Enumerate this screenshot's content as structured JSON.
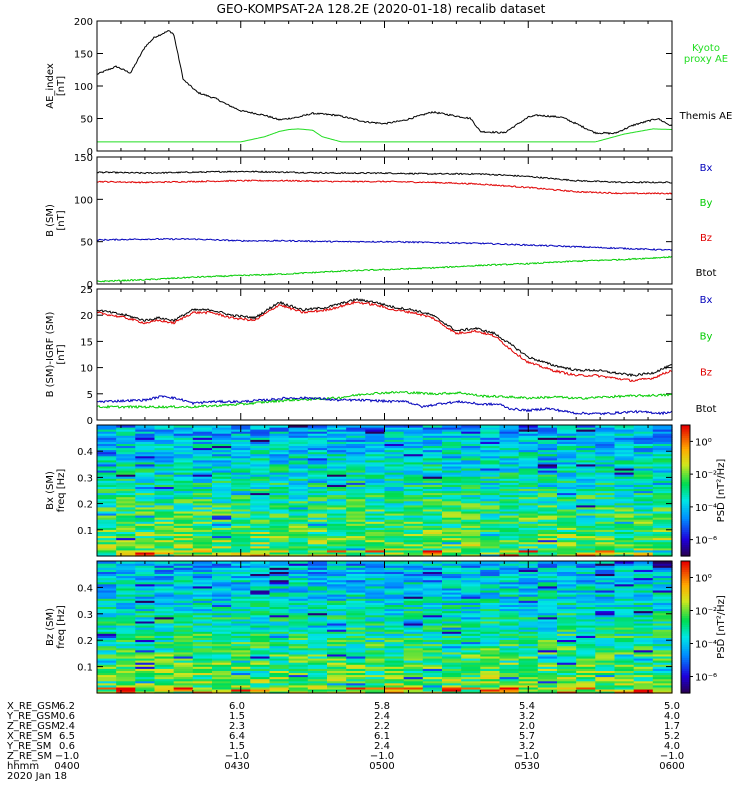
{
  "title": "GEO-KOMPSAT-2A 128.2E (2020-01-18) recalib dataset",
  "colors": {
    "black": "#000000",
    "red": "#e00000",
    "green": "#00cc00",
    "blue": "#0000bb",
    "kyoto": "#22dd22"
  },
  "chart_data": [
    {
      "type": "line",
      "panel": "ae",
      "ylabel": "AE_index\n[nT]",
      "ylim": [
        0,
        200
      ],
      "yticks": [
        0,
        50,
        100,
        150,
        200
      ],
      "grid": false,
      "legend_placement": "right",
      "legend": [
        {
          "label": "Kyoto\nproxy AE",
          "color": "#22dd22"
        },
        {
          "label": "Themis AE",
          "color": "#000000"
        }
      ],
      "series": [
        {
          "name": "Themis AE",
          "color": "#000000",
          "x": [
            0,
            4,
            7,
            10,
            12,
            15,
            16,
            18,
            21,
            25,
            27,
            30,
            35,
            38,
            42,
            45,
            50,
            56,
            60,
            64,
            70,
            74,
            78,
            80,
            85,
            90,
            92,
            97,
            100,
            104,
            108,
            112,
            117,
            120
          ],
          "y": [
            118,
            130,
            120,
            160,
            175,
            185,
            180,
            110,
            90,
            80,
            72,
            62,
            55,
            48,
            52,
            58,
            55,
            45,
            42,
            47,
            60,
            55,
            50,
            30,
            28,
            52,
            55,
            52,
            42,
            28,
            27,
            40,
            50,
            38
          ]
        },
        {
          "name": "Kyoto proxy AE",
          "color": "#22dd22",
          "x": [
            0,
            30,
            35,
            38,
            40,
            42,
            45,
            47,
            51,
            100,
            104,
            107,
            110,
            113,
            116,
            120
          ],
          "y": [
            14,
            14,
            22,
            30,
            33,
            34,
            32,
            22,
            14,
            14,
            14,
            20,
            26,
            30,
            34,
            33
          ]
        }
      ]
    },
    {
      "type": "line",
      "panel": "b_sm",
      "ylabel": "B (SM)\n[nT]",
      "ylim": [
        0,
        150
      ],
      "yticks": [
        0,
        50,
        100,
        150
      ],
      "grid": false,
      "legend_placement": "right",
      "legend": [
        {
          "label": "Bx",
          "color": "#0000bb"
        },
        {
          "label": "By",
          "color": "#00cc00"
        },
        {
          "label": "Bz",
          "color": "#e00000"
        },
        {
          "label": "Btot",
          "color": "#000000"
        }
      ],
      "series": [
        {
          "name": "Btot",
          "color": "#000000",
          "x": [
            0,
            10,
            20,
            30,
            40,
            50,
            60,
            70,
            80,
            90,
            100,
            110,
            120
          ],
          "y": [
            132,
            131,
            132,
            133,
            132,
            131,
            131,
            130,
            130,
            127,
            122,
            120,
            120
          ]
        },
        {
          "name": "Bz",
          "color": "#e00000",
          "x": [
            0,
            10,
            20,
            30,
            40,
            50,
            60,
            70,
            80,
            90,
            100,
            110,
            120
          ],
          "y": [
            121,
            120,
            121,
            122,
            122,
            121,
            121,
            120,
            118,
            114,
            109,
            107,
            107
          ]
        },
        {
          "name": "Bx",
          "color": "#0000bb",
          "x": [
            0,
            10,
            20,
            30,
            40,
            50,
            60,
            70,
            80,
            90,
            100,
            110,
            120
          ],
          "y": [
            52,
            53,
            53,
            51,
            51,
            50,
            50,
            49,
            48,
            46,
            44,
            42,
            40
          ]
        },
        {
          "name": "By",
          "color": "#00cc00",
          "x": [
            0,
            10,
            20,
            30,
            40,
            50,
            60,
            70,
            80,
            90,
            100,
            110,
            120
          ],
          "y": [
            3,
            5,
            8,
            10,
            12,
            15,
            17,
            19,
            22,
            24,
            27,
            29,
            32
          ]
        }
      ]
    },
    {
      "type": "line",
      "panel": "b_igrf",
      "ylabel": "B (SM)-IGRF (SM)\n[nT]",
      "ylim": [
        0,
        25
      ],
      "yticks": [
        0,
        5,
        10,
        15,
        20,
        25
      ],
      "grid": false,
      "legend_placement": "right",
      "legend": [
        {
          "label": "Bx",
          "color": "#0000bb"
        },
        {
          "label": "By",
          "color": "#00cc00"
        },
        {
          "label": "Bz",
          "color": "#e00000"
        },
        {
          "label": "Btot",
          "color": "#000000"
        }
      ],
      "series": [
        {
          "name": "Btot",
          "color": "#000000",
          "x": [
            0,
            6,
            10,
            13,
            16,
            20,
            24,
            28,
            33,
            38,
            43,
            48,
            54,
            58,
            62,
            66,
            70,
            75,
            79,
            83,
            87,
            90,
            95,
            100,
            104,
            108,
            112,
            116,
            120
          ],
          "y": [
            21,
            20,
            19,
            19.5,
            19,
            21,
            21,
            20,
            19.5,
            22.5,
            21,
            21.5,
            23,
            22.5,
            21.5,
            21,
            20,
            17,
            17.5,
            16.5,
            14,
            12,
            10.5,
            9.5,
            9.5,
            9,
            8.5,
            9,
            10.5
          ]
        },
        {
          "name": "Bz",
          "color": "#e00000",
          "x": [
            0,
            6,
            10,
            13,
            16,
            20,
            24,
            28,
            33,
            38,
            43,
            48,
            54,
            58,
            62,
            66,
            70,
            75,
            79,
            83,
            87,
            90,
            95,
            100,
            104,
            108,
            112,
            116,
            120
          ],
          "y": [
            20.5,
            19.5,
            18.5,
            19,
            18.5,
            20.5,
            20.5,
            19.5,
            19,
            22,
            20.5,
            21,
            22.5,
            22,
            21,
            20.5,
            19.5,
            16.5,
            17,
            16,
            13,
            11,
            9.5,
            8.5,
            8.5,
            8,
            7.5,
            8,
            9.5
          ]
        },
        {
          "name": "By",
          "color": "#00cc00",
          "x": [
            0,
            10,
            20,
            30,
            36,
            40,
            46,
            50,
            56,
            60,
            64,
            70,
            76,
            80,
            86,
            90,
            96,
            100,
            106,
            112,
            120
          ],
          "y": [
            2.5,
            2.5,
            2.5,
            3,
            3.5,
            3.8,
            4,
            4.2,
            5,
            5.2,
            5.3,
            5,
            5.2,
            4.6,
            4.4,
            4.2,
            4.4,
            4.1,
            4.4,
            4.6,
            4.8
          ]
        },
        {
          "name": "Bx",
          "color": "#0000bb",
          "x": [
            0,
            10,
            14,
            18,
            20,
            24,
            30,
            35,
            40,
            45,
            50,
            54,
            58,
            62,
            64,
            68,
            72,
            76,
            80,
            84,
            86,
            90,
            94,
            100,
            106,
            112,
            118,
            120
          ],
          "y": [
            3.5,
            3.8,
            4.6,
            3.8,
            3.2,
            3.5,
            3.5,
            3.8,
            4.2,
            4.2,
            3.8,
            3.8,
            3.7,
            3.5,
            3.7,
            2.5,
            3.2,
            3.5,
            3,
            3,
            2.2,
            1.8,
            2.2,
            1.3,
            1.2,
            1.6,
            1.3,
            1.6
          ]
        }
      ]
    },
    {
      "type": "heatmap",
      "panel": "bx_spec",
      "ylabel": "Bx (SM)\nfreq [Hz]",
      "ylim": [
        0,
        0.5
      ],
      "yticks": [
        0.1,
        0.2,
        0.3,
        0.4
      ],
      "colorbar": {
        "label": "PSD [nT²/Hz]",
        "ticks": [
          "10⁰",
          "10⁻²",
          "10⁻⁴",
          "10⁻⁶"
        ],
        "log_range": [
          -7,
          1
        ]
      }
    },
    {
      "type": "heatmap",
      "panel": "bz_spec",
      "ylabel": "Bz (SM)\nfreq [Hz]",
      "ylim": [
        0,
        0.5
      ],
      "yticks": [
        0.1,
        0.2,
        0.3,
        0.4
      ],
      "colorbar": {
        "label": "PSD [nT²/Hz]",
        "ticks": [
          "10⁰",
          "10⁻²",
          "10⁻⁴",
          "10⁻⁶"
        ],
        "log_range": [
          -7,
          1
        ]
      }
    }
  ],
  "ephemeris": {
    "row_labels": [
      "X_RE_GSM",
      "Y_RE_GSM",
      "Z_RE_GSM",
      "X_RE_SM",
      "Y_RE_SM",
      "Z_RE_SM",
      "hhmm"
    ],
    "columns": [
      [
        "6.2",
        "0.6",
        "2.4",
        "6.5",
        "0.6",
        "−1.0",
        "0400"
      ],
      [
        "6.0",
        "1.5",
        "2.3",
        "6.4",
        "1.5",
        "−1.0",
        "0430"
      ],
      [
        "5.8",
        "2.4",
        "2.2",
        "6.1",
        "2.4",
        "−1.0",
        "0500"
      ],
      [
        "5.4",
        "3.2",
        "2.0",
        "5.7",
        "3.2",
        "−1.0",
        "0530"
      ],
      [
        "5.0",
        "4.0",
        "1.7",
        "5.2",
        "4.0",
        "−1.0",
        "0600"
      ]
    ],
    "date": "2020 Jan 18"
  }
}
